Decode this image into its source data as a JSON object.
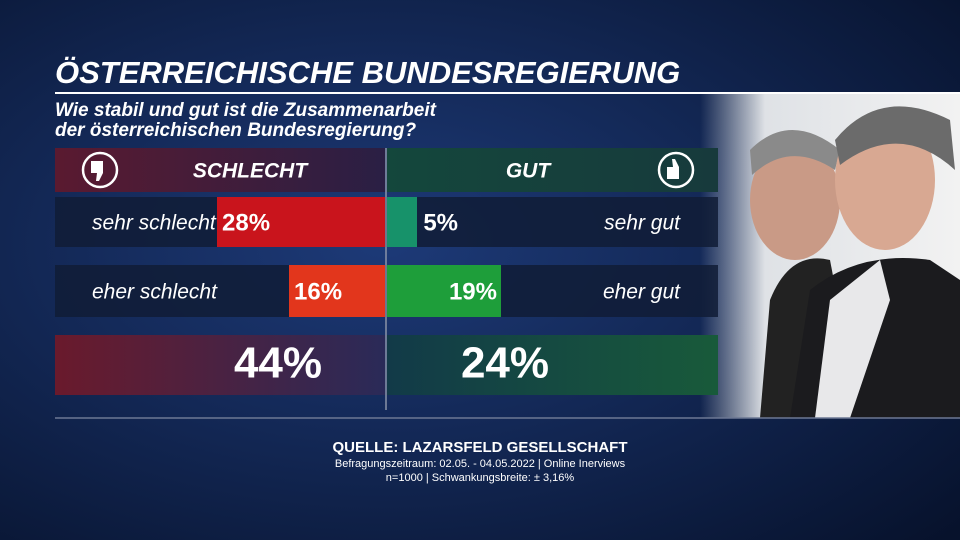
{
  "chart_data": {
    "type": "diverging_bar",
    "title": "ÖSTERREICHISCHE BUNDESREGIERUNG",
    "subtitle": [
      "Wie stabil und gut ist die Zusammenarbeit",
      "der österreichischen Bundesregierung?"
    ],
    "series": [
      {
        "name": "SCHLECHT",
        "side": "left",
        "categories": [
          "sehr schlecht",
          "eher schlecht"
        ],
        "values": [
          28,
          16
        ],
        "value_labels": [
          "28%",
          "16%"
        ],
        "colors": [
          "#c9141c",
          "#e2361c"
        ],
        "total": 44,
        "total_label": "44%"
      },
      {
        "name": "GUT",
        "side": "right",
        "categories": [
          "sehr gut",
          "eher gut"
        ],
        "values": [
          5,
          19
        ],
        "value_labels": [
          "5%",
          "19%"
        ],
        "colors": [
          "#17926a",
          "#1e9e3a"
        ],
        "total": 24,
        "total_label": "24%"
      }
    ],
    "source": [
      "QUELLE:  LAZARSFELD GESELLSCHAFT",
      "Befragungszeitraum: 02.05. - 04.05.2022 | Online Inerviews",
      "n=1000 |  Schwankungsbreite: ± 3,16%"
    ]
  }
}
